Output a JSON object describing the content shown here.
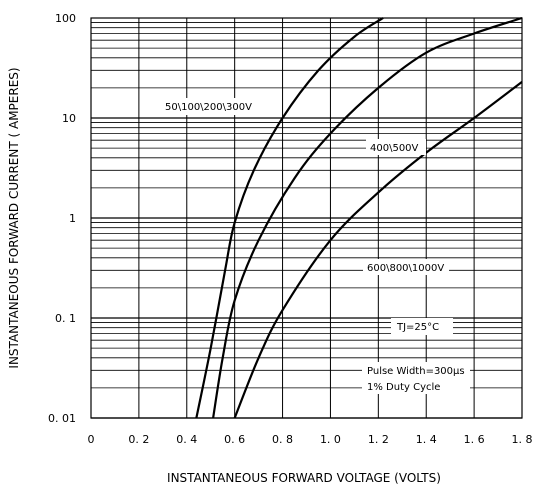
{
  "chart_data": {
    "type": "line",
    "xlabel": "INSTANTANEOUS FORWARD VOLTAGE (VOLTS)",
    "ylabel": "INSTANTANEOUS FORWARD CURRENT ( AMPERES)",
    "xlim": [
      0,
      1.8
    ],
    "ylim": [
      0.01,
      100
    ],
    "y_scale": "log",
    "grid": true,
    "x_ticks": [
      "0",
      "0. 2",
      "0. 4",
      "0. 6",
      "0. 8",
      "1. 0",
      "1. 2",
      "1. 4",
      "1. 6",
      "1. 8"
    ],
    "x_tick_values": [
      0,
      0.2,
      0.4,
      0.6,
      0.8,
      1.0,
      1.2,
      1.4,
      1.6,
      1.8
    ],
    "y_ticks": [
      "100",
      "10",
      "1",
      "0. 1",
      "0. 01"
    ],
    "y_tick_values": [
      100,
      10,
      1,
      0.1,
      0.01
    ],
    "series": [
      {
        "name": "50\\100\\200\\300V",
        "x": [
          0.44,
          0.5,
          0.56,
          0.6,
          0.68,
          0.8,
          0.95,
          1.1,
          1.22
        ],
        "y": [
          0.01,
          0.05,
          0.3,
          0.9,
          3,
          10,
          30,
          65,
          100
        ]
      },
      {
        "name": "400\\500V",
        "x": [
          0.51,
          0.55,
          0.6,
          0.7,
          0.85,
          1.0,
          1.2,
          1.4,
          1.6,
          1.8
        ],
        "y": [
          0.01,
          0.04,
          0.15,
          0.6,
          2.5,
          7,
          20,
          45,
          70,
          100
        ]
      },
      {
        "name": "600\\800\\1000V",
        "x": [
          0.6,
          0.7,
          0.8,
          1.0,
          1.2,
          1.4,
          1.6,
          1.8
        ],
        "y": [
          0.01,
          0.04,
          0.12,
          0.6,
          1.8,
          4.5,
          10,
          23
        ]
      }
    ],
    "annotations": [
      "50\\100\\200\\300V",
      "400\\500V",
      "600\\800\\1000V",
      "TJ=25°C",
      "Pulse Width=300µs",
      "1% Duty Cycle"
    ]
  }
}
